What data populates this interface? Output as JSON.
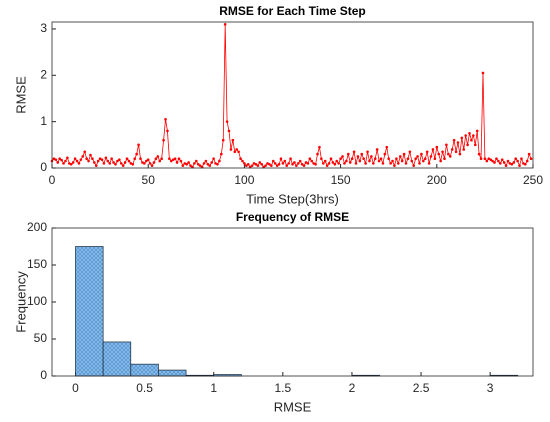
{
  "chart_data": [
    {
      "type": "line",
      "title": "RMSE for Each Time Step",
      "xlabel": "Time Step(3hrs)",
      "ylabel": "RMSE",
      "x": [
        0,
        1,
        2,
        3,
        4,
        5,
        6,
        7,
        8,
        9,
        10,
        11,
        12,
        13,
        14,
        15,
        16,
        17,
        18,
        19,
        20,
        21,
        22,
        23,
        24,
        25,
        26,
        27,
        28,
        29,
        30,
        31,
        32,
        33,
        34,
        35,
        36,
        37,
        38,
        39,
        40,
        41,
        42,
        43,
        44,
        45,
        46,
        47,
        48,
        49,
        50,
        51,
        52,
        53,
        54,
        55,
        56,
        57,
        58,
        59,
        60,
        61,
        62,
        63,
        64,
        65,
        66,
        67,
        68,
        69,
        70,
        71,
        72,
        73,
        74,
        75,
        76,
        77,
        78,
        79,
        80,
        81,
        82,
        83,
        84,
        85,
        86,
        87,
        88,
        89,
        90,
        91,
        92,
        93,
        94,
        95,
        96,
        97,
        98,
        99,
        100,
        101,
        102,
        103,
        104,
        105,
        106,
        107,
        108,
        109,
        110,
        111,
        112,
        113,
        114,
        115,
        116,
        117,
        118,
        119,
        120,
        121,
        122,
        123,
        124,
        125,
        126,
        127,
        128,
        129,
        130,
        131,
        132,
        133,
        134,
        135,
        136,
        137,
        138,
        139,
        140,
        141,
        142,
        143,
        144,
        145,
        146,
        147,
        148,
        149,
        150,
        151,
        152,
        153,
        154,
        155,
        156,
        157,
        158,
        159,
        160,
        161,
        162,
        163,
        164,
        165,
        166,
        167,
        168,
        169,
        170,
        171,
        172,
        173,
        174,
        175,
        176,
        177,
        178,
        179,
        180,
        181,
        182,
        183,
        184,
        185,
        186,
        187,
        188,
        189,
        190,
        191,
        192,
        193,
        194,
        195,
        196,
        197,
        198,
        199,
        200,
        201,
        202,
        203,
        204,
        205,
        206,
        207,
        208,
        209,
        210,
        211,
        212,
        213,
        214,
        215,
        216,
        217,
        218,
        219,
        220,
        221,
        222,
        223,
        224,
        225,
        226,
        227,
        228,
        229,
        230,
        231,
        232,
        233,
        234,
        235,
        236,
        237,
        238,
        239,
        240,
        241,
        242,
        243,
        244,
        245,
        246,
        247,
        248,
        249
      ],
      "series": [
        {
          "color": "#ff0000",
          "values": [
            0.15,
            0.2,
            0.18,
            0.12,
            0.2,
            0.17,
            0.1,
            0.15,
            0.22,
            0.1,
            0.08,
            0.12,
            0.2,
            0.15,
            0.1,
            0.18,
            0.25,
            0.35,
            0.2,
            0.15,
            0.28,
            0.2,
            0.12,
            0.05,
            0.15,
            0.2,
            0.18,
            0.1,
            0.22,
            0.15,
            0.1,
            0.2,
            0.12,
            0.08,
            0.15,
            0.18,
            0.1,
            0.05,
            0.12,
            0.2,
            0.15,
            0.1,
            0.08,
            0.2,
            0.3,
            0.5,
            0.2,
            0.12,
            0.1,
            0.15,
            0.18,
            0.1,
            0.05,
            0.12,
            0.2,
            0.25,
            0.15,
            0.2,
            0.6,
            1.05,
            0.8,
            0.2,
            0.15,
            0.18,
            0.2,
            0.12,
            0.2,
            0.15,
            0.05,
            0.1,
            0.08,
            0.12,
            0.05,
            0.02,
            0.1,
            0.15,
            0.08,
            0.05,
            0.02,
            0.1,
            0.15,
            0.08,
            0.05,
            0.12,
            0.2,
            0.1,
            0.08,
            0.15,
            0.3,
            0.6,
            3.1,
            1.0,
            0.8,
            0.4,
            0.6,
            0.35,
            0.4,
            0.35,
            0.2,
            0.15,
            0.1,
            0.05,
            0.08,
            0.02,
            0.05,
            0.1,
            0.08,
            0.05,
            0.12,
            0.08,
            0.02,
            0.05,
            0.1,
            0.08,
            0.05,
            0.15,
            0.1,
            0.05,
            0.08,
            0.2,
            0.1,
            0.15,
            0.05,
            0.1,
            0.2,
            0.08,
            0.12,
            0.05,
            0.1,
            0.15,
            0.08,
            0.05,
            0.12,
            0.1,
            0.2,
            0.15,
            0.1,
            0.08,
            0.3,
            0.45,
            0.2,
            0.1,
            0.15,
            0.05,
            0.1,
            0.2,
            0.12,
            0.08,
            0.15,
            0.1,
            0.2,
            0.25,
            0.1,
            0.15,
            0.3,
            0.12,
            0.2,
            0.35,
            0.1,
            0.25,
            0.15,
            0.3,
            0.2,
            0.1,
            0.35,
            0.15,
            0.25,
            0.1,
            0.2,
            0.4,
            0.15,
            0.2,
            0.1,
            0.3,
            0.45,
            0.2,
            0.1,
            0.15,
            0.05,
            0.2,
            0.1,
            0.25,
            0.15,
            0.3,
            0.1,
            0.2,
            0.35,
            0.15,
            0.05,
            0.2,
            0.25,
            0.1,
            0.3,
            0.15,
            0.2,
            0.35,
            0.1,
            0.25,
            0.4,
            0.2,
            0.45,
            0.3,
            0.15,
            0.35,
            0.2,
            0.5,
            0.3,
            0.25,
            0.4,
            0.6,
            0.35,
            0.55,
            0.3,
            0.65,
            0.4,
            0.7,
            0.5,
            0.75,
            0.6,
            0.7,
            0.5,
            0.8,
            0.3,
            0.2,
            2.05,
            0.2,
            0.15,
            0.2,
            0.18,
            0.15,
            0.12,
            0.2,
            0.15,
            0.1,
            0.18,
            0.12,
            0.05,
            0.15,
            0.1,
            0.08,
            0.12,
            0.2,
            0.15,
            0.05,
            0.2,
            0.1,
            0.08,
            0.15,
            0.3,
            0.2
          ]
        }
      ],
      "xlim": [
        0,
        250
      ],
      "xticks": [
        0,
        50,
        100,
        150,
        200,
        250
      ],
      "ylim": [
        0,
        3.15
      ],
      "yticks": [
        0,
        1,
        2,
        3
      ]
    },
    {
      "type": "histogram",
      "title": "Frequency of RMSE",
      "xlabel": "RMSE",
      "ylabel": "Frequency",
      "color": "#5b9bd5",
      "bins": [
        0,
        0.2,
        0.4,
        0.6,
        0.8,
        1.0,
        1.2,
        1.4,
        1.6,
        1.8,
        2.0,
        2.2,
        2.4,
        2.6,
        2.8,
        3.0,
        3.2
      ],
      "values": [
        175,
        46,
        16,
        8,
        1,
        2,
        0,
        0,
        0,
        0,
        1,
        0,
        0,
        0,
        0,
        1
      ],
      "xlim": [
        -0.17,
        3.31
      ],
      "xticks": [
        0,
        0.5,
        1,
        1.5,
        2,
        2.5,
        3
      ],
      "ylim": [
        0,
        200
      ],
      "yticks": [
        0,
        50,
        100,
        150,
        200
      ]
    }
  ]
}
